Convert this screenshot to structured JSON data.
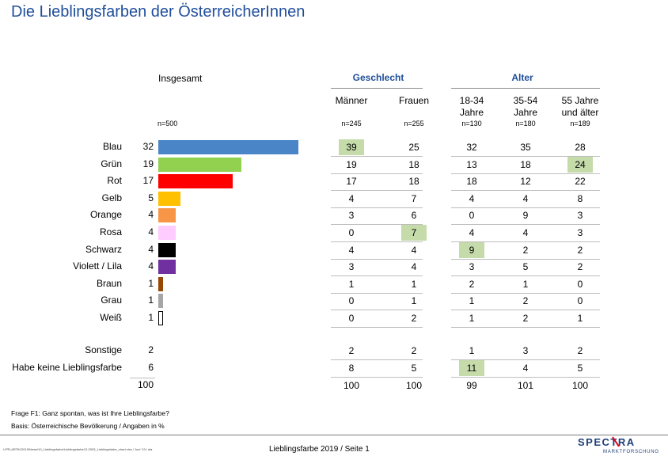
{
  "title": "Die Lieblingsfarben der ÖsterreicherInnen",
  "headers": {
    "insgesamt": "Insgesamt",
    "n_total": "n=500",
    "group_gender": "Geschlecht",
    "group_age": "Alter",
    "columns": [
      {
        "label": "Männer",
        "n": "n=245"
      },
      {
        "label": "Frauen",
        "n": "n=255"
      },
      {
        "label": "18-34\nJahre",
        "n": "n=130"
      },
      {
        "label": "35-54\nJahre",
        "n": "n=180"
      },
      {
        "label": "55 Jahre\nund älter",
        "n": "n=189"
      }
    ]
  },
  "chart_data": {
    "type": "bar",
    "categories": [
      "Blau",
      "Grün",
      "Rot",
      "Gelb",
      "Orange",
      "Rosa",
      "Schwarz",
      "Violett / Lila",
      "Braun",
      "Grau",
      "Weiß"
    ],
    "values": [
      32,
      19,
      17,
      5,
      4,
      4,
      4,
      4,
      1,
      1,
      1
    ],
    "colors": [
      "#4a86c7",
      "#92d050",
      "#ff0000",
      "#ffc000",
      "#f79646",
      "#ffccff",
      "#000000",
      "#7030a0",
      "#984806",
      "#a6a6a6",
      "#ffffff"
    ],
    "xlim": [
      0,
      32
    ]
  },
  "rows": [
    {
      "label": "Blau",
      "total": "32",
      "values": [
        "39",
        "25",
        "32",
        "35",
        "28"
      ],
      "highlight": [
        0
      ]
    },
    {
      "label": "Grün",
      "total": "19",
      "values": [
        "19",
        "18",
        "13",
        "18",
        "24"
      ],
      "highlight": [
        4
      ]
    },
    {
      "label": "Rot",
      "total": "17",
      "values": [
        "17",
        "18",
        "18",
        "12",
        "22"
      ],
      "highlight": []
    },
    {
      "label": "Gelb",
      "total": "5",
      "values": [
        "4",
        "7",
        "4",
        "4",
        "8"
      ],
      "highlight": []
    },
    {
      "label": "Orange",
      "total": "4",
      "values": [
        "3",
        "6",
        "0",
        "9",
        "3"
      ],
      "highlight": []
    },
    {
      "label": "Rosa",
      "total": "4",
      "values": [
        "0",
        "7",
        "4",
        "4",
        "3"
      ],
      "highlight": [
        1
      ]
    },
    {
      "label": "Schwarz",
      "total": "4",
      "values": [
        "4",
        "4",
        "9",
        "2",
        "2"
      ],
      "highlight": [
        2
      ]
    },
    {
      "label": "Violett / Lila",
      "total": "4",
      "values": [
        "3",
        "4",
        "3",
        "5",
        "2"
      ],
      "highlight": []
    },
    {
      "label": "Braun",
      "total": "1",
      "values": [
        "1",
        "1",
        "2",
        "1",
        "0"
      ],
      "highlight": []
    },
    {
      "label": "Grau",
      "total": "1",
      "values": [
        "0",
        "1",
        "1",
        "2",
        "0"
      ],
      "highlight": []
    },
    {
      "label": "Weiß",
      "total": "1",
      "values": [
        "0",
        "2",
        "1",
        "2",
        "1"
      ],
      "highlight": []
    }
  ],
  "extra_rows": [
    {
      "label": "Sonstige",
      "total": "2",
      "values": [
        "2",
        "2",
        "1",
        "3",
        "2"
      ],
      "highlight": []
    },
    {
      "label": "Habe keine Lieblingsfarbe",
      "total": "6",
      "values": [
        "8",
        "5",
        "11",
        "4",
        "5"
      ],
      "highlight": [
        2
      ]
    }
  ],
  "sum_row": {
    "total": "100",
    "values": [
      "100",
      "100",
      "99",
      "101",
      "100"
    ]
  },
  "footer": {
    "question": "Frage F1: Ganz spontan, was ist Ihre Lieblingsfarbe?",
    "basis": "Basis: Österreichische Bevölkerung / Angaben in %",
    "path": "I:\\PR-ARTIK\\2019\\News\\10_Lieblingsfarbe\\Lieblingsfarbe12-2933_Lieblingsfarbe_chart.xlsx / Juni '19 / sfa",
    "page": "Lieblingsfarbe 2019  /  Seite  1"
  },
  "logo": {
    "text": "SPECTRA",
    "subtext": "MARKTFORSCHUNG"
  }
}
